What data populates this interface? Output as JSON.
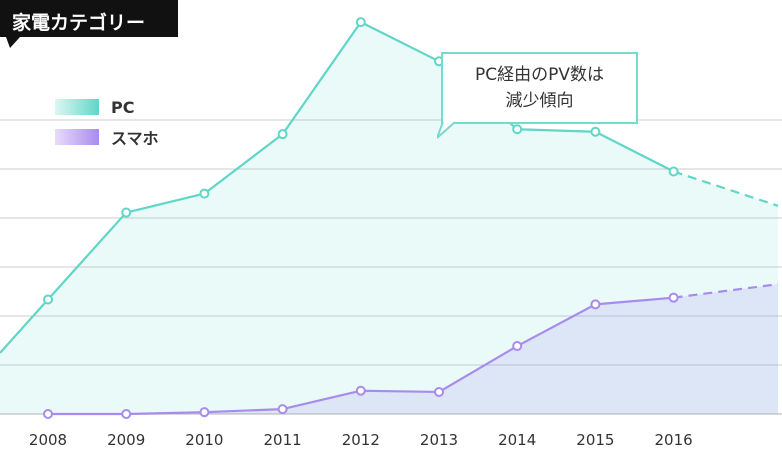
{
  "title": "家電カテゴリー",
  "callout": {
    "line1": "PC経由のPV数は",
    "line2": "減少傾向"
  },
  "colors": {
    "pc": "#5fd6c7",
    "sp": "#a88bed",
    "title_bg": "#111111",
    "grid": "#cccccc"
  },
  "chart_data": {
    "type": "line",
    "categories": [
      "2008",
      "2009",
      "2010",
      "2011",
      "2012",
      "2013",
      "2014",
      "2015",
      "2016"
    ],
    "ylim": [
      0,
      6.5
    ],
    "grid": true,
    "legend": "top-left",
    "series": [
      {
        "name": "PC",
        "values": [
          1.87,
          3.29,
          3.6,
          4.57,
          6.4,
          5.76,
          4.65,
          4.61,
          3.96
        ],
        "projected_end": 3.4
      },
      {
        "name": "スマホ",
        "values": [
          0.0,
          0.0,
          0.03,
          0.08,
          0.38,
          0.36,
          1.11,
          1.79,
          1.9
        ],
        "projected_end": 2.12
      }
    ]
  }
}
